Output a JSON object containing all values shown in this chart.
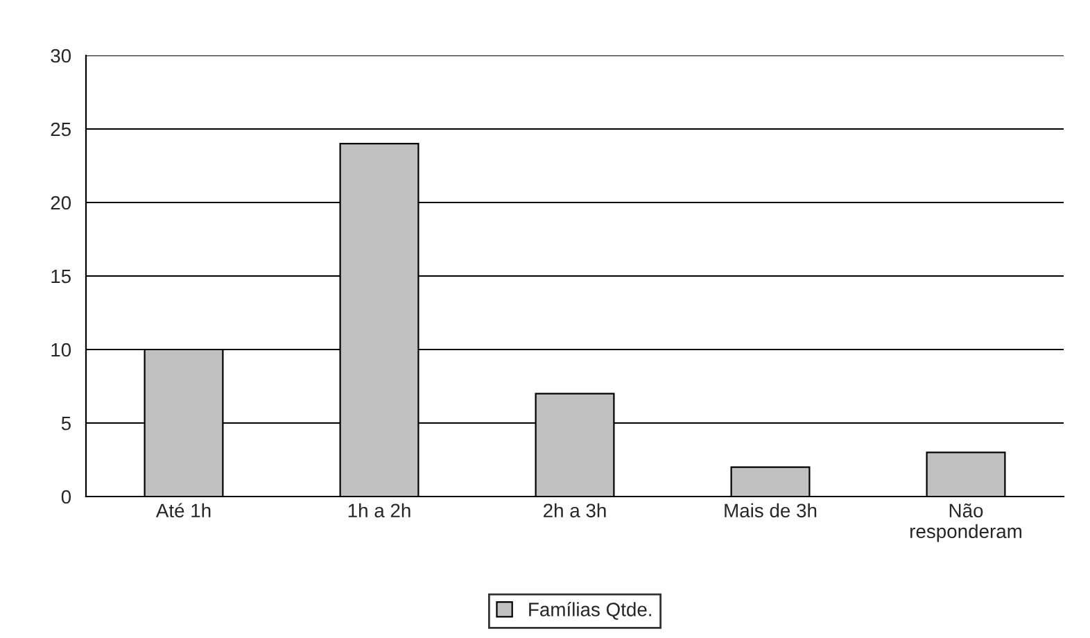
{
  "chart_data": {
    "type": "bar",
    "categories": [
      "Até 1h",
      "1h a 2h",
      "2h a 3h",
      "Mais de 3h",
      "Não\nresponderam"
    ],
    "series": [
      {
        "name": "Famílias Qtde.",
        "color": "#c0c0c0",
        "values": [
          10,
          24,
          7,
          2,
          3
        ]
      }
    ],
    "ylim": [
      0,
      30
    ],
    "yticks": [
      0,
      5,
      10,
      15,
      20,
      25,
      30
    ],
    "grid": "y",
    "legend": "bottom"
  }
}
